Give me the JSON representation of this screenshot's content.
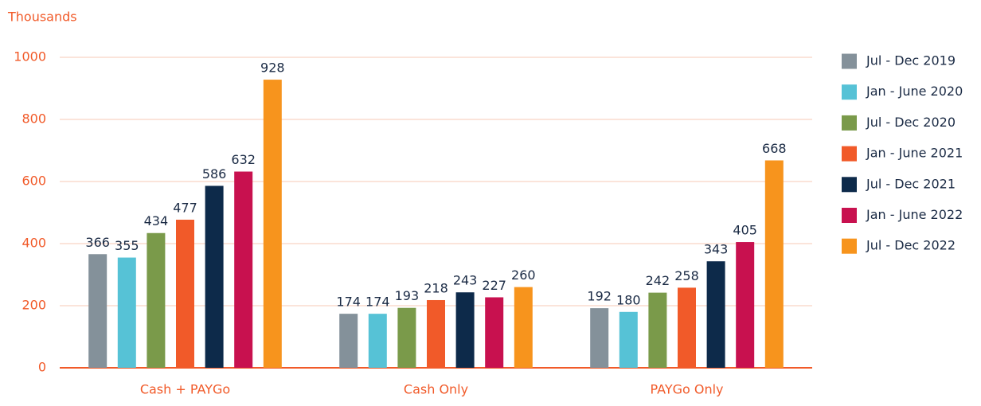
{
  "chart_data": {
    "type": "bar",
    "y_axis_label": "Thousands",
    "categories": [
      "Cash + PAYGo",
      "Cash Only",
      "PAYGo Only"
    ],
    "series": [
      {
        "name": "Jul - Dec 2019",
        "color": "#84919a",
        "values": [
          366,
          174,
          192
        ]
      },
      {
        "name": "Jan - June 2020",
        "color": "#56c2d6",
        "values": [
          355,
          174,
          180
        ]
      },
      {
        "name": "Jul - Dec 2020",
        "color": "#7a9a4a",
        "values": [
          434,
          193,
          242
        ]
      },
      {
        "name": "Jan - June 2021",
        "color": "#f15a29",
        "values": [
          477,
          218,
          258
        ]
      },
      {
        "name": "Jul - Dec 2021",
        "color": "#0d2a4a",
        "values": [
          586,
          243,
          343
        ]
      },
      {
        "name": "Jan - June 2022",
        "color": "#c8114f",
        "values": [
          632,
          227,
          405
        ]
      },
      {
        "name": "Jul - Dec 2022",
        "color": "#f7941d",
        "values": [
          928,
          260,
          668
        ]
      }
    ],
    "ylim": [
      0,
      1000
    ],
    "yticks": [
      0,
      200,
      400,
      600,
      800,
      1000
    ],
    "grid": true,
    "legend": "right"
  }
}
